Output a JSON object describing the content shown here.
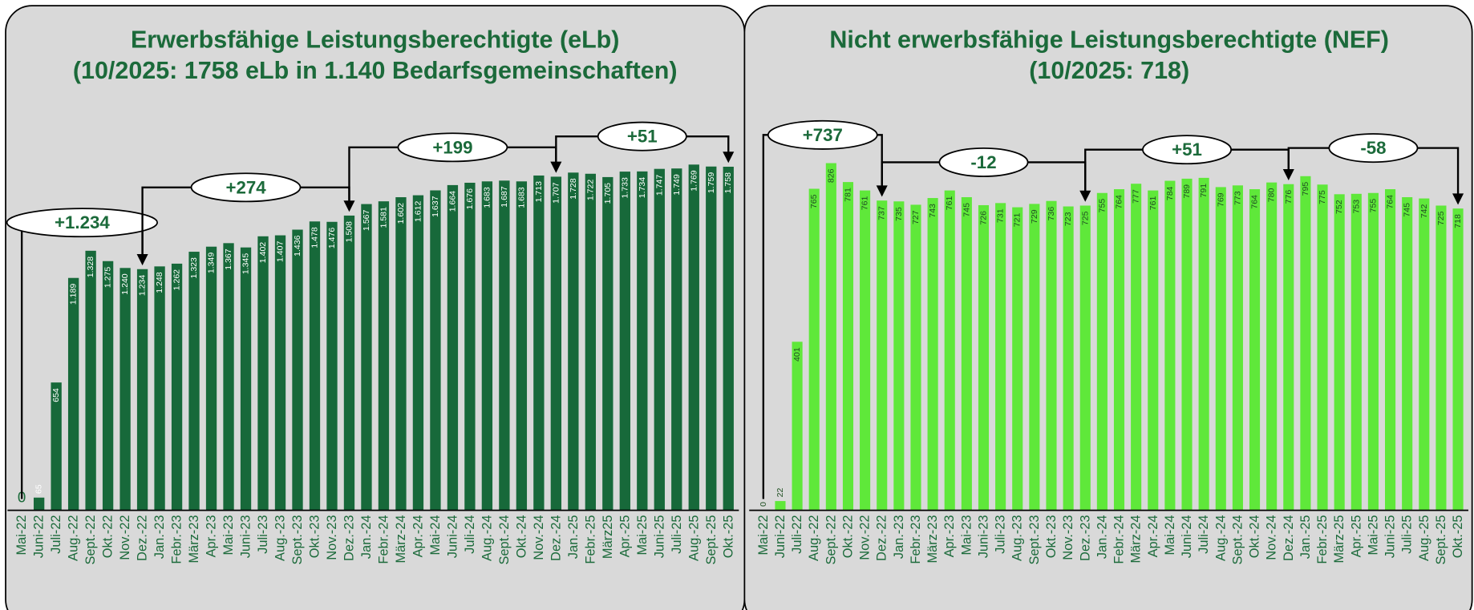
{
  "chart_data": [
    {
      "type": "bar",
      "title": "Erwerbsfähige Leistungsberechtigte (eLb)",
      "subtitle": "(10/2025: 1758 eLb in 1.140 Bedarfsgemeinschaften)",
      "categories": [
        "Mai-22",
        "Juni-22",
        "Juli-22",
        "Aug.-22",
        "Sept.-22",
        "Okt.-22",
        "Nov.-22",
        "Dez.-22",
        "Jan.-23",
        "Febr.-23",
        "März-23",
        "Apr.-23",
        "Mai-23",
        "Juni-23",
        "Juli-23",
        "Aug.-23",
        "Sept.-23",
        "Okt.-23",
        "Nov.-23",
        "Dez.-23",
        "Jan.-24",
        "Febr.-24",
        "März-24",
        "Apr.-24",
        "Mai-24",
        "Juni-24",
        "Juli-24",
        "Aug.-24",
        "Sept.-24",
        "Okt.-24",
        "Nov.-24",
        "Dez.-24",
        "Jan.-25",
        "Febr.-25",
        "März25",
        "Apr.-25",
        "Mai-25",
        "Juni-25",
        "Juli-25",
        "Aug.-25",
        "Sept.-25",
        "Okt.-25"
      ],
      "values": [
        0,
        65,
        654,
        1189,
        1328,
        1275,
        1240,
        1234,
        1248,
        1262,
        1323,
        1349,
        1367,
        1345,
        1402,
        1407,
        1436,
        1478,
        1476,
        1508,
        1567,
        1581,
        1602,
        1612,
        1637,
        1664,
        1676,
        1683,
        1687,
        1683,
        1713,
        1707,
        1728,
        1722,
        1705,
        1733,
        1734,
        1747,
        1749,
        1769,
        1759,
        1758
      ],
      "value_labels": [
        "0",
        "65",
        "654",
        "1.189",
        "1.328",
        "1.275",
        "1.240",
        "1.234",
        "1.248",
        "1.262",
        "1.323",
        "1.349",
        "1.367",
        "1.345",
        "1.402",
        "1.407",
        "1.436",
        "1.478",
        "1.476",
        "1.508",
        "1.567",
        "1.581",
        "1.602",
        "1.612",
        "1.637",
        "1.664",
        "1.676",
        "1.683",
        "1.687",
        "1.683",
        "1.713",
        "1.707",
        "1.728",
        "1.722",
        "1.705",
        "1.733",
        "1.734",
        "1.747",
        "1.749",
        "1.769",
        "1.759",
        "1.758"
      ],
      "color": "#17693a",
      "ylim": [
        0,
        2000
      ],
      "annotations": [
        {
          "text": "+1.234",
          "from": 0,
          "to": 7
        },
        {
          "text": "+274",
          "from": 7,
          "to": 19
        },
        {
          "text": "+199",
          "from": 19,
          "to": 31
        },
        {
          "text": "+51",
          "from": 31,
          "to": 41
        }
      ]
    },
    {
      "type": "bar",
      "title": "Nicht erwerbsfähige Leistungsberechtigte (NEF)",
      "subtitle": "(10/2025: 718)",
      "categories": [
        "Mai-22",
        "Juni-22",
        "Juli-22",
        "Aug.-22",
        "Sept.-22",
        "Okt.-22",
        "Nov.-22",
        "Dez.-22",
        "Jan.-23",
        "Febr.-23",
        "März-23",
        "Apr.-23",
        "Mai-23",
        "Juni-23",
        "Juli-23",
        "Aug.-23",
        "Sept.-23",
        "Okt.-23",
        "Nov.-23",
        "Dez.-23",
        "Jan.-24",
        "Febr.-24",
        "März-24",
        "Apr.-24",
        "Mai-24",
        "Juni-24",
        "Juli-24",
        "Aug.-24",
        "Sept.-24",
        "Okt.-24",
        "Nov.-24",
        "Dez.-24",
        "Jan.-25",
        "Febr.-25",
        "März-25",
        "Apr.-25",
        "Mai-25",
        "Juni-25",
        "Juli-25",
        "Aug.-25",
        "Sept.-25",
        "Okt.-25"
      ],
      "values": [
        0,
        22,
        401,
        765,
        826,
        781,
        761,
        737,
        735,
        727,
        743,
        761,
        745,
        726,
        731,
        721,
        729,
        736,
        723,
        725,
        755,
        764,
        777,
        761,
        784,
        789,
        791,
        769,
        773,
        764,
        780,
        776,
        795,
        775,
        752,
        753,
        755,
        764,
        745,
        742,
        725,
        718
      ],
      "color": "#5fe83a",
      "ylim": [
        0,
        930
      ],
      "annotations": [
        {
          "text": "+737",
          "from": 0,
          "to": 7
        },
        {
          "text": "-12",
          "from": 7,
          "to": 19
        },
        {
          "text": "+51",
          "from": 19,
          "to": 31
        },
        {
          "text": "-58",
          "from": 31,
          "to": 41
        }
      ]
    }
  ]
}
